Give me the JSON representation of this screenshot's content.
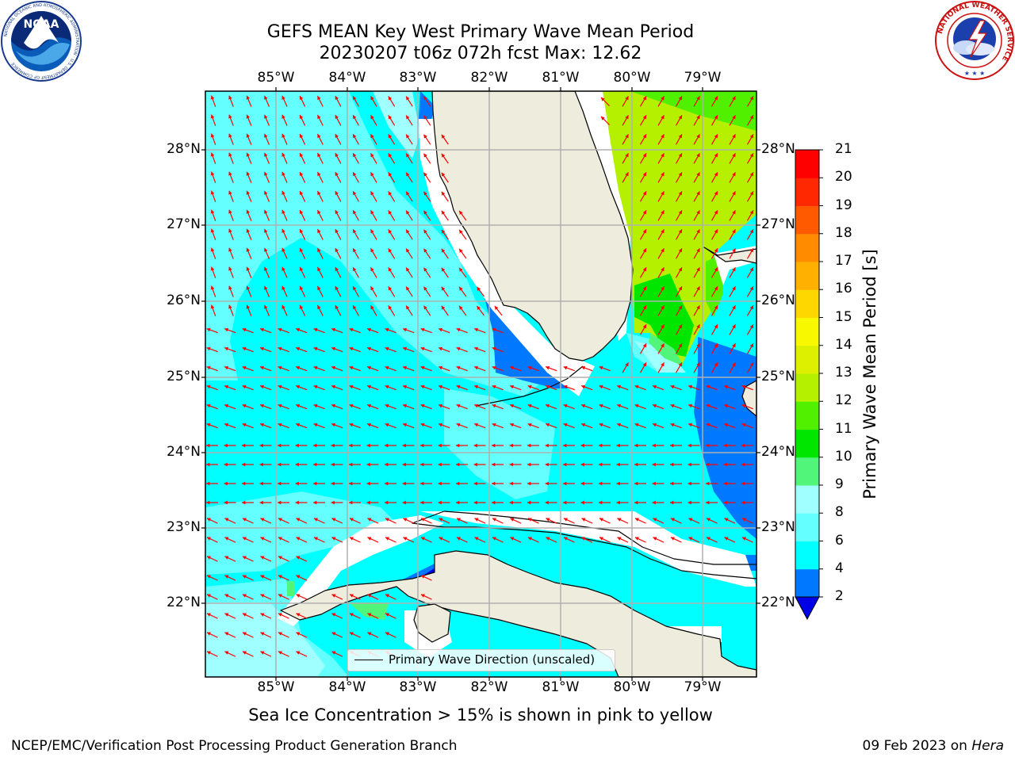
{
  "title": {
    "line1": "GEFS MEAN Key West Primary Wave Mean Period",
    "line2": "20230207 t06z 072h fcst   Max: 12.62"
  },
  "map": {
    "lon_labels": [
      "85°W",
      "84°W",
      "83°W",
      "82°W",
      "81°W",
      "80°W",
      "79°W"
    ],
    "lat_labels": [
      "28°N",
      "27°N",
      "26°N",
      "25°N",
      "24°N",
      "23°N",
      "22°N"
    ],
    "colors": {
      "land": "#eeecdc",
      "ocean": "#00ffff",
      "arrows": "#ff0000",
      "grid": "#b0b0b0"
    }
  },
  "legend": {
    "label": "Primary Wave Direction (unscaled)"
  },
  "colorbar": {
    "title": "Primary Wave Mean Period [s]",
    "ticks": [
      "2",
      "4",
      "6",
      "8",
      "9",
      "10",
      "11",
      "12",
      "13",
      "14",
      "15",
      "16",
      "17",
      "18",
      "19",
      "20",
      "21"
    ],
    "colors": [
      "#0000e6",
      "#0078ff",
      "#00ffff",
      "#64ffff",
      "#a0ffff",
      "#50f57a",
      "#00e600",
      "#50f000",
      "#b4f000",
      "#dcf000",
      "#f8f800",
      "#ffd700",
      "#ffb000",
      "#ff8c00",
      "#ff5a00",
      "#ff2800",
      "#ff0000"
    ]
  },
  "note": "Sea Ice Concentration > 15% is shown in pink to yellow",
  "footer": {
    "left": "NCEP/EMC/Verification Post Processing Product Generation Branch",
    "right_date": "09 Feb 2023 on ",
    "right_host": "Hera"
  },
  "logos": {
    "noaa": {
      "center": "NOAA",
      "ring_text": "NATIONAL OCEANIC AND ATMOSPHERIC ADMINISTRATION · U.S. DEPARTMENT OF COMMERCE"
    },
    "nws": {
      "ring_text": "NATIONAL WEATHER SERVICE"
    }
  }
}
